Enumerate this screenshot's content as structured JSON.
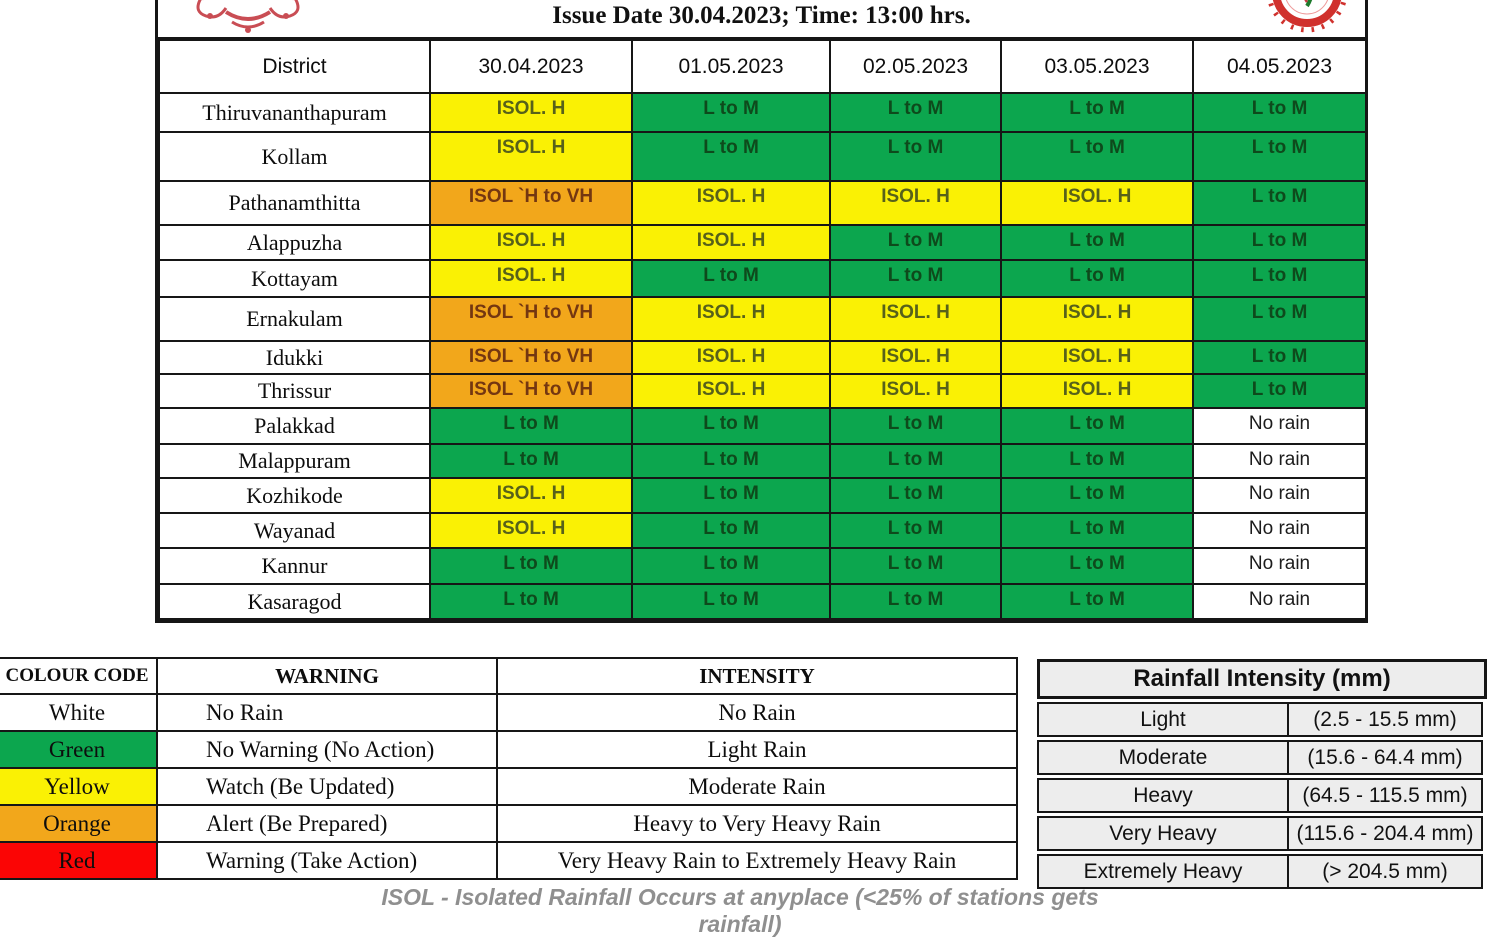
{
  "header": {
    "title": "Issue Date 30.04.2023; Time: 13:00 hrs.",
    "left_logo": "kerala-government-emblem",
    "right_logo": "imd-logo"
  },
  "colors": {
    "green": "#0CA64E",
    "yellow": "#FAF104",
    "orange": "#F2A71B",
    "red": "#FB0505",
    "white": "#FFFFFF"
  },
  "forecast_table": {
    "columns": [
      "District",
      "30.04.2023",
      "01.05.2023",
      "02.05.2023",
      "03.05.2023",
      "04.05.2023"
    ],
    "rows": [
      {
        "district": "Thiruvananthapuram",
        "cells": [
          {
            "text": "ISOL. H",
            "color": "yellow"
          },
          {
            "text": "L to M",
            "color": "green"
          },
          {
            "text": "L to M",
            "color": "green"
          },
          {
            "text": "L to M",
            "color": "green"
          },
          {
            "text": "L to M",
            "color": "green"
          }
        ]
      },
      {
        "district": "Kollam",
        "cells": [
          {
            "text": "ISOL. H",
            "color": "yellow"
          },
          {
            "text": "L to M",
            "color": "green"
          },
          {
            "text": "L to M",
            "color": "green"
          },
          {
            "text": "L to M",
            "color": "green"
          },
          {
            "text": "L to M",
            "color": "green"
          }
        ]
      },
      {
        "district": "Pathanamthitta",
        "cells": [
          {
            "text": "ISOL `H to VH",
            "color": "orange"
          },
          {
            "text": "ISOL. H",
            "color": "yellow"
          },
          {
            "text": "ISOL. H",
            "color": "yellow"
          },
          {
            "text": "ISOL. H",
            "color": "yellow"
          },
          {
            "text": "L to M",
            "color": "green"
          }
        ]
      },
      {
        "district": "Alappuzha",
        "cells": [
          {
            "text": "ISOL. H",
            "color": "yellow"
          },
          {
            "text": "ISOL. H",
            "color": "yellow"
          },
          {
            "text": "L to M",
            "color": "green"
          },
          {
            "text": "L to M",
            "color": "green"
          },
          {
            "text": "L to M",
            "color": "green"
          }
        ]
      },
      {
        "district": "Kottayam",
        "cells": [
          {
            "text": "ISOL. H",
            "color": "yellow"
          },
          {
            "text": "L to M",
            "color": "green"
          },
          {
            "text": "L to M",
            "color": "green"
          },
          {
            "text": "L to M",
            "color": "green"
          },
          {
            "text": "L to M",
            "color": "green"
          }
        ]
      },
      {
        "district": "Ernakulam",
        "cells": [
          {
            "text": "ISOL `H to VH",
            "color": "orange"
          },
          {
            "text": "ISOL. H",
            "color": "yellow"
          },
          {
            "text": "ISOL. H",
            "color": "yellow"
          },
          {
            "text": "ISOL. H",
            "color": "yellow"
          },
          {
            "text": "L to M",
            "color": "green"
          }
        ]
      },
      {
        "district": "Idukki",
        "cells": [
          {
            "text": "ISOL `H to VH",
            "color": "orange"
          },
          {
            "text": "ISOL. H",
            "color": "yellow"
          },
          {
            "text": "ISOL. H",
            "color": "yellow"
          },
          {
            "text": "ISOL. H",
            "color": "yellow"
          },
          {
            "text": "L to M",
            "color": "green"
          }
        ]
      },
      {
        "district": "Thrissur",
        "cells": [
          {
            "text": "ISOL `H to VH",
            "color": "orange"
          },
          {
            "text": "ISOL. H",
            "color": "yellow"
          },
          {
            "text": "ISOL. H",
            "color": "yellow"
          },
          {
            "text": "ISOL. H",
            "color": "yellow"
          },
          {
            "text": "L to M",
            "color": "green"
          }
        ]
      },
      {
        "district": "Palakkad",
        "cells": [
          {
            "text": "L to M",
            "color": "green"
          },
          {
            "text": "L to M",
            "color": "green"
          },
          {
            "text": "L to M",
            "color": "green"
          },
          {
            "text": "L to M",
            "color": "green"
          },
          {
            "text": "No rain",
            "color": "white"
          }
        ]
      },
      {
        "district": "Malappuram",
        "cells": [
          {
            "text": "L to M",
            "color": "green"
          },
          {
            "text": "L to M",
            "color": "green"
          },
          {
            "text": "L to M",
            "color": "green"
          },
          {
            "text": "L to M",
            "color": "green"
          },
          {
            "text": "No rain",
            "color": "white"
          }
        ]
      },
      {
        "district": "Kozhikode",
        "cells": [
          {
            "text": "ISOL. H",
            "color": "yellow"
          },
          {
            "text": "L to M",
            "color": "green"
          },
          {
            "text": "L to M",
            "color": "green"
          },
          {
            "text": "L to M",
            "color": "green"
          },
          {
            "text": "No rain",
            "color": "white"
          }
        ]
      },
      {
        "district": "Wayanad",
        "cells": [
          {
            "text": "ISOL. H",
            "color": "yellow"
          },
          {
            "text": "L to M",
            "color": "green"
          },
          {
            "text": "L to M",
            "color": "green"
          },
          {
            "text": "L to M",
            "color": "green"
          },
          {
            "text": "No rain",
            "color": "white"
          }
        ]
      },
      {
        "district": "Kannur",
        "cells": [
          {
            "text": "L to M",
            "color": "green"
          },
          {
            "text": "L to M",
            "color": "green"
          },
          {
            "text": "L to M",
            "color": "green"
          },
          {
            "text": "L to M",
            "color": "green"
          },
          {
            "text": "No rain",
            "color": "white"
          }
        ]
      },
      {
        "district": "Kasaragod",
        "cells": [
          {
            "text": "L to M",
            "color": "green"
          },
          {
            "text": "L to M",
            "color": "green"
          },
          {
            "text": "L to M",
            "color": "green"
          },
          {
            "text": "L to M",
            "color": "green"
          },
          {
            "text": "No rain",
            "color": "white"
          }
        ]
      }
    ]
  },
  "legend_table": {
    "headers": [
      "COLOUR CODE",
      "WARNING",
      "INTENSITY"
    ],
    "rows": [
      {
        "color_name": "White",
        "swatch": "white",
        "warning": "No Rain",
        "intensity": "No Rain"
      },
      {
        "color_name": "Green",
        "swatch": "green",
        "warning": "No Warning (No Action)",
        "intensity": "Light Rain"
      },
      {
        "color_name": "Yellow",
        "swatch": "yellow",
        "warning": "Watch (Be Updated)",
        "intensity": "Moderate Rain"
      },
      {
        "color_name": "Orange",
        "swatch": "orange",
        "warning": "Alert (Be Prepared)",
        "intensity": "Heavy to Very Heavy Rain"
      },
      {
        "color_name": "Red",
        "swatch": "red",
        "warning": "Warning (Take Action)",
        "intensity": "Very Heavy Rain to Extremely Heavy Rain"
      }
    ]
  },
  "intensity_table": {
    "title": "Rainfall Intensity (mm)",
    "rows": [
      {
        "label": "Light",
        "range": "(2.5 - 15.5 mm)"
      },
      {
        "label": "Moderate",
        "range": "(15.6 - 64.4 mm)"
      },
      {
        "label": "Heavy",
        "range": "(64.5 - 115.5 mm)"
      },
      {
        "label": "Very Heavy",
        "range": "(115.6 - 204.4 mm)"
      },
      {
        "label": "Extremely Heavy",
        "range": "(> 204.5 mm)"
      }
    ]
  },
  "footnote": "ISOL - Isolated Rainfall Occurs at anyplace (<25% of stations gets rainfall)"
}
